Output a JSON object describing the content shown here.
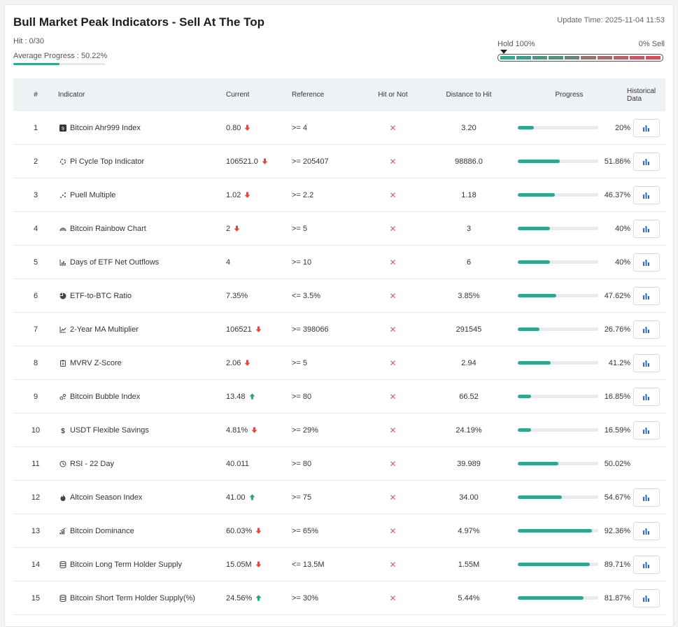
{
  "header": {
    "title": "Bull Market Peak Indicators - Sell At The Top",
    "hit": "Hit : 0/30",
    "average_progress": "Average Progress : 50.22%",
    "average_progress_value": 0.5022,
    "update_time": "Update Time: 2025-11-04 11:53",
    "scale_left": "Hold 100%",
    "scale_right": "0% Sell",
    "scale_colors": [
      "#3aa58c",
      "#3f9c86",
      "#4b9480",
      "#578d7c",
      "#6b8377",
      "#977272",
      "#a96a6c",
      "#b86167",
      "#c75862",
      "#d64d5a"
    ]
  },
  "columns": [
    "#",
    "Indicator",
    "Current",
    "Reference",
    "Hit or Not",
    "Distance to Hit",
    "Progress",
    "Historical Data"
  ],
  "colors": {
    "accent": "#2ea98f",
    "down": "#e2453c",
    "up": "#1fa67a",
    "miss": "#e05a5a",
    "chart_icon": "#1f6fd1"
  },
  "rows": [
    {
      "num": "1",
      "icon": "badge-9-icon",
      "name": "Bitcoin Ahr999 Index",
      "current": "0.80",
      "trend": "down",
      "reference": ">= 4",
      "hit": "✕",
      "distance": "3.20",
      "progress": "20%",
      "progress_value": 0.2,
      "history": true
    },
    {
      "num": "2",
      "icon": "cycle-icon",
      "name": "Pi Cycle Top Indicator",
      "current": "106521.0",
      "trend": "down",
      "reference": ">= 205407",
      "hit": "✕",
      "distance": "98886.0",
      "progress": "51.86%",
      "progress_value": 0.5186,
      "history": true
    },
    {
      "num": "3",
      "icon": "scatter-icon",
      "name": "Puell Multiple",
      "current": "1.02",
      "trend": "down",
      "reference": ">= 2.2",
      "hit": "✕",
      "distance": "1.18",
      "progress": "46.37%",
      "progress_value": 0.4637,
      "history": true
    },
    {
      "num": "4",
      "icon": "rainbow-icon",
      "name": "Bitcoin Rainbow Chart",
      "current": "2",
      "trend": "down",
      "reference": ">= 5",
      "hit": "✕",
      "distance": "3",
      "progress": "40%",
      "progress_value": 0.4,
      "history": true
    },
    {
      "num": "5",
      "icon": "bar-chart-icon",
      "name": "Days of ETF Net Outflows",
      "current": "4",
      "trend": "none",
      "reference": ">= 10",
      "hit": "✕",
      "distance": "6",
      "progress": "40%",
      "progress_value": 0.4,
      "history": true
    },
    {
      "num": "6",
      "icon": "pie-chart-icon",
      "name": "ETF-to-BTC Ratio",
      "current": "7.35%",
      "trend": "none",
      "reference": "<= 3.5%",
      "hit": "✕",
      "distance": "3.85%",
      "progress": "47.62%",
      "progress_value": 0.4762,
      "history": true
    },
    {
      "num": "7",
      "icon": "line-chart-icon",
      "name": "2-Year MA Multiplier",
      "current": "106521",
      "trend": "down",
      "reference": ">= 398066",
      "hit": "✕",
      "distance": "291545",
      "progress": "26.76%",
      "progress_value": 0.2676,
      "history": true
    },
    {
      "num": "8",
      "icon": "clipboard-icon",
      "name": "MVRV Z-Score",
      "current": "2.06",
      "trend": "down",
      "reference": ">= 5",
      "hit": "✕",
      "distance": "2.94",
      "progress": "41.2%",
      "progress_value": 0.412,
      "history": true
    },
    {
      "num": "9",
      "icon": "bubble-icon",
      "name": "Bitcoin Bubble Index",
      "current": "13.48",
      "trend": "up",
      "reference": ">= 80",
      "hit": "✕",
      "distance": "66.52",
      "progress": "16.85%",
      "progress_value": 0.1685,
      "history": true
    },
    {
      "num": "10",
      "icon": "dollar-icon",
      "name": "USDT Flexible Savings",
      "current": "4.81%",
      "trend": "down",
      "reference": ">= 29%",
      "hit": "✕",
      "distance": "24.19%",
      "progress": "16.59%",
      "progress_value": 0.1659,
      "history": true
    },
    {
      "num": "11",
      "icon": "clock-icon",
      "name": "RSI - 22 Day",
      "current": "40.011",
      "trend": "none",
      "reference": ">= 80",
      "hit": "✕",
      "distance": "39.989",
      "progress": "50.02%",
      "progress_value": 0.5002,
      "history": false
    },
    {
      "num": "12",
      "icon": "flame-icon",
      "name": "Altcoin Season Index",
      "current": "41.00",
      "trend": "up",
      "reference": ">= 75",
      "hit": "✕",
      "distance": "34.00",
      "progress": "54.67%",
      "progress_value": 0.5467,
      "history": true
    },
    {
      "num": "13",
      "icon": "signal-bars-icon",
      "name": "Bitcoin Dominance",
      "current": "60.03%",
      "trend": "down",
      "reference": ">= 65%",
      "hit": "✕",
      "distance": "4.97%",
      "progress": "92.36%",
      "progress_value": 0.9236,
      "history": true
    },
    {
      "num": "14",
      "icon": "database-icon",
      "name": "Bitcoin Long Term Holder Supply",
      "current": "15.05M",
      "trend": "down",
      "reference": "<= 13.5M",
      "hit": "✕",
      "distance": "1.55M",
      "progress": "89.71%",
      "progress_value": 0.8971,
      "history": true
    },
    {
      "num": "15",
      "icon": "database-icon",
      "name": "Bitcoin Short Term Holder Supply(%)",
      "current": "24.56%",
      "trend": "up",
      "reference": ">= 30%",
      "hit": "✕",
      "distance": "5.44%",
      "progress": "81.87%",
      "progress_value": 0.8187,
      "history": true
    }
  ]
}
